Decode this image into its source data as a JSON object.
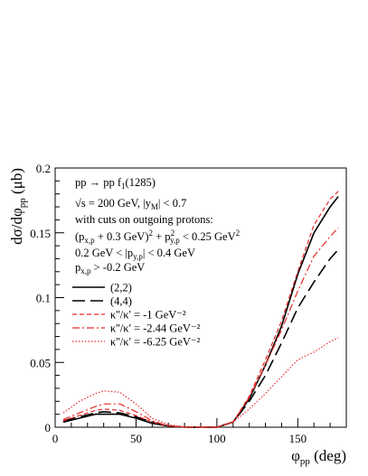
{
  "chart_data": {
    "type": "line",
    "xlabel": "φpp (deg)",
    "ylabel": "dσ/dφpp (μb)",
    "xlim": [
      0,
      180
    ],
    "ylim": [
      0,
      0.2
    ],
    "xticks": [
      0,
      50,
      100,
      150
    ],
    "yticks": [
      0,
      0.05,
      0.1,
      0.15,
      0.2
    ],
    "grid": false,
    "legend_position": "top-left",
    "annotations": [
      "pp → pp f1(1285)",
      "√s = 200 GeV,  |yM| < 0.7",
      "with cuts on outgoing protons:",
      "(px,p + 0.3 GeV)² + p²y,p < 0.25 GeV²",
      "0.2 GeV < |py,p| < 0.4 GeV",
      "px,p > -0.2 GeV"
    ],
    "x": [
      5,
      15,
      25,
      30,
      40,
      50,
      60,
      70,
      80,
      90,
      100,
      110,
      120,
      130,
      140,
      150,
      160,
      170,
      175
    ],
    "series": [
      {
        "name": "(2,2)",
        "style": "solid",
        "color": "#000000",
        "values": [
          0.004,
          0.007,
          0.01,
          0.01,
          0.01,
          0.007,
          0.003,
          0.001,
          0.0,
          0.0,
          0.0,
          0.004,
          0.022,
          0.048,
          0.078,
          0.118,
          0.15,
          0.17,
          0.178
        ]
      },
      {
        "name": "(4,4)",
        "style": "longdash",
        "color": "#000000",
        "values": [
          0.005,
          0.008,
          0.011,
          0.012,
          0.011,
          0.008,
          0.004,
          0.001,
          0.0,
          0.0,
          0.0,
          0.004,
          0.02,
          0.04,
          0.065,
          0.092,
          0.112,
          0.13,
          0.137
        ]
      },
      {
        "name": "κ''/κ' = -1 GeV⁻²",
        "style": "dashed",
        "color": "#e8292a",
        "values": [
          0.005,
          0.009,
          0.013,
          0.014,
          0.013,
          0.009,
          0.004,
          0.001,
          0.0,
          0.0,
          0.0,
          0.004,
          0.024,
          0.052,
          0.082,
          0.12,
          0.156,
          0.176,
          0.182
        ]
      },
      {
        "name": "κ''/κ' = -2.44 GeV⁻²",
        "style": "dashdot",
        "color": "#e8292a",
        "values": [
          0.006,
          0.011,
          0.016,
          0.018,
          0.018,
          0.012,
          0.005,
          0.001,
          0.0,
          0.0,
          0.0,
          0.004,
          0.023,
          0.048,
          0.075,
          0.105,
          0.132,
          0.147,
          0.154
        ]
      },
      {
        "name": "κ''/κ' = -6.25 GeV⁻²",
        "style": "dotted",
        "color": "#e8292a",
        "values": [
          0.011,
          0.02,
          0.026,
          0.028,
          0.027,
          0.018,
          0.007,
          0.002,
          0.0,
          0.0,
          0.0,
          0.004,
          0.014,
          0.026,
          0.039,
          0.052,
          0.058,
          0.066,
          0.069
        ]
      }
    ]
  }
}
